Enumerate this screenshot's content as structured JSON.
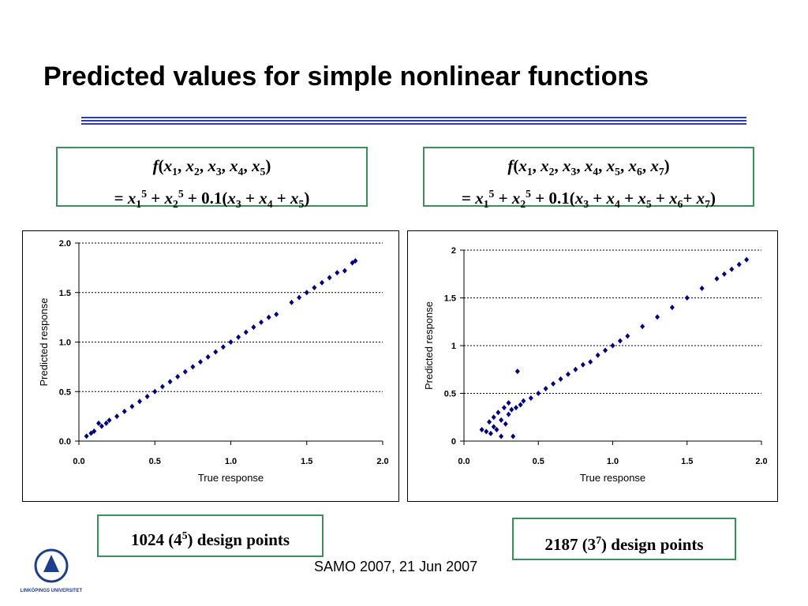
{
  "slide": {
    "title": "Predicted values for simple nonlinear functions",
    "formulas": [
      [
        [
          {
            "text": "f",
            "style": "i"
          },
          {
            "text": "("
          },
          {
            "text": "x",
            "style": "i"
          },
          {
            "text": "1",
            "style": "sub"
          },
          {
            "text": ", "
          },
          {
            "text": "x",
            "style": "i"
          },
          {
            "text": "2",
            "style": "sub"
          },
          {
            "text": ", "
          },
          {
            "text": "x",
            "style": "i"
          },
          {
            "text": "3",
            "style": "sub"
          },
          {
            "text": ", "
          },
          {
            "text": "x",
            "style": "i"
          },
          {
            "text": "4",
            "style": "sub"
          },
          {
            "text": ", "
          },
          {
            "text": "x",
            "style": "i"
          },
          {
            "text": "5",
            "style": "sub"
          },
          {
            "text": ")"
          }
        ],
        [
          {
            "text": "= "
          },
          {
            "text": "x",
            "style": "i"
          },
          {
            "text": "1",
            "style": "sub"
          },
          {
            "text": "5",
            "style": "sup"
          },
          {
            "text": " + "
          },
          {
            "text": "x",
            "style": "i"
          },
          {
            "text": "2",
            "style": "sub"
          },
          {
            "text": "5",
            "style": "sup"
          },
          {
            "text": " + 0.1("
          },
          {
            "text": "x",
            "style": "i"
          },
          {
            "text": "3",
            "style": "sub"
          },
          {
            "text": " + "
          },
          {
            "text": "x",
            "style": "i"
          },
          {
            "text": "4",
            "style": "sub"
          },
          {
            "text": " + "
          },
          {
            "text": "x",
            "style": "i"
          },
          {
            "text": "5",
            "style": "sub"
          },
          {
            "text": ")"
          }
        ]
      ],
      [
        [
          {
            "text": "f",
            "style": "i"
          },
          {
            "text": "("
          },
          {
            "text": "x",
            "style": "i"
          },
          {
            "text": "1",
            "style": "sub"
          },
          {
            "text": ", "
          },
          {
            "text": "x",
            "style": "i"
          },
          {
            "text": "2",
            "style": "sub"
          },
          {
            "text": ", "
          },
          {
            "text": "x",
            "style": "i"
          },
          {
            "text": "3",
            "style": "sub"
          },
          {
            "text": ", "
          },
          {
            "text": "x",
            "style": "i"
          },
          {
            "text": "4",
            "style": "sub"
          },
          {
            "text": ", "
          },
          {
            "text": "x",
            "style": "i"
          },
          {
            "text": "5",
            "style": "sub"
          },
          {
            "text": ", "
          },
          {
            "text": "x",
            "style": "i"
          },
          {
            "text": "6",
            "style": "sub"
          },
          {
            "text": ", "
          },
          {
            "text": "x",
            "style": "i"
          },
          {
            "text": "7",
            "style": "sub"
          },
          {
            "text": ")"
          }
        ],
        [
          {
            "text": "= "
          },
          {
            "text": "x",
            "style": "i"
          },
          {
            "text": "1",
            "style": "sub"
          },
          {
            "text": "5",
            "style": "sup"
          },
          {
            "text": " + "
          },
          {
            "text": "x",
            "style": "i"
          },
          {
            "text": "2",
            "style": "sub"
          },
          {
            "text": "5",
            "style": "sup"
          },
          {
            "text": " + 0.1("
          },
          {
            "text": "x",
            "style": "i"
          },
          {
            "text": "3",
            "style": "sub"
          },
          {
            "text": " + "
          },
          {
            "text": "x",
            "style": "i"
          },
          {
            "text": "4",
            "style": "sub"
          },
          {
            "text": " + "
          },
          {
            "text": "x",
            "style": "i"
          },
          {
            "text": "5",
            "style": "sub"
          },
          {
            "text": " + "
          },
          {
            "text": "x",
            "style": "i"
          },
          {
            "text": "6",
            "style": "sub"
          },
          {
            "text": "+ "
          },
          {
            "text": "x",
            "style": "i"
          },
          {
            "text": "7",
            "style": "sub"
          },
          {
            "text": ")"
          }
        ]
      ]
    ],
    "captions": [
      [
        {
          "text": "1024 (4"
        },
        {
          "text": "5",
          "style": "sup"
        },
        {
          "text": ") design points"
        }
      ],
      [
        {
          "text": "2187 (3"
        },
        {
          "text": "7",
          "style": "sup"
        },
        {
          "text": ") design points"
        }
      ]
    ],
    "footer": "SAMO 2007, 21 Jun 2007",
    "logo_text": "LINKÖPINGS UNIVERSITET"
  },
  "chart_data": [
    {
      "type": "scatter",
      "xlabel": "True response",
      "ylabel": "Predicted response",
      "color": "#000080",
      "grid": true,
      "xlim": [
        0,
        2
      ],
      "ylim": [
        0,
        2
      ],
      "xticks": [
        {
          "value": 0,
          "label": "0.0"
        },
        0.5,
        {
          "value": 1,
          "label": "1.0"
        },
        1.5,
        {
          "value": 2,
          "label": "2.0"
        }
      ],
      "yticks": [
        {
          "value": 0,
          "label": "0.0"
        },
        0.5,
        {
          "value": 1,
          "label": "1.0"
        },
        1.5,
        {
          "value": 2,
          "label": "2.0"
        }
      ],
      "x": [
        0.05,
        0.08,
        0.1,
        0.13,
        0.15,
        0.18,
        0.2,
        0.25,
        0.3,
        0.35,
        0.4,
        0.45,
        0.5,
        0.55,
        0.6,
        0.65,
        0.7,
        0.75,
        0.8,
        0.85,
        0.9,
        0.95,
        1.0,
        1.05,
        1.1,
        1.15,
        1.2,
        1.25,
        1.3,
        1.4,
        1.45,
        1.5,
        1.55,
        1.6,
        1.65,
        1.7,
        1.75,
        1.8,
        1.82
      ],
      "y": [
        0.05,
        0.08,
        0.1,
        0.18,
        0.15,
        0.18,
        0.21,
        0.25,
        0.3,
        0.35,
        0.4,
        0.45,
        0.5,
        0.55,
        0.6,
        0.65,
        0.7,
        0.75,
        0.8,
        0.85,
        0.9,
        0.95,
        1.0,
        1.05,
        1.1,
        1.15,
        1.2,
        1.25,
        1.28,
        1.4,
        1.45,
        1.5,
        1.55,
        1.6,
        1.65,
        1.7,
        1.72,
        1.8,
        1.82
      ]
    },
    {
      "type": "scatter",
      "xlabel": "True response",
      "ylabel": "Predicted response",
      "color": "#000080",
      "grid": true,
      "xlim": [
        0,
        2
      ],
      "ylim": [
        0,
        2
      ],
      "xticks": [
        {
          "value": 0,
          "label": "0.0"
        },
        0.5,
        {
          "value": 1,
          "label": "1.0"
        },
        1.5,
        {
          "value": 2,
          "label": "2.0"
        }
      ],
      "yticks": [
        0,
        0.5,
        1,
        1.5,
        2
      ],
      "x": [
        0.12,
        0.15,
        0.17,
        0.18,
        0.2,
        0.2,
        0.22,
        0.23,
        0.25,
        0.25,
        0.27,
        0.28,
        0.3,
        0.3,
        0.32,
        0.33,
        0.35,
        0.36,
        0.38,
        0.4,
        0.45,
        0.5,
        0.55,
        0.6,
        0.65,
        0.7,
        0.75,
        0.8,
        0.85,
        0.9,
        0.95,
        1.0,
        1.05,
        1.1,
        1.2,
        1.3,
        1.4,
        1.5,
        1.6,
        1.7,
        1.75,
        1.8,
        1.85,
        1.9
      ],
      "y": [
        0.12,
        0.1,
        0.2,
        0.08,
        0.25,
        0.15,
        0.12,
        0.3,
        0.05,
        0.22,
        0.35,
        0.18,
        0.28,
        0.4,
        0.33,
        0.05,
        0.35,
        0.73,
        0.38,
        0.42,
        0.45,
        0.5,
        0.55,
        0.6,
        0.65,
        0.7,
        0.75,
        0.8,
        0.83,
        0.9,
        0.95,
        1.0,
        1.05,
        1.1,
        1.2,
        1.3,
        1.4,
        1.5,
        1.6,
        1.7,
        1.75,
        1.8,
        1.85,
        1.9
      ]
    }
  ]
}
